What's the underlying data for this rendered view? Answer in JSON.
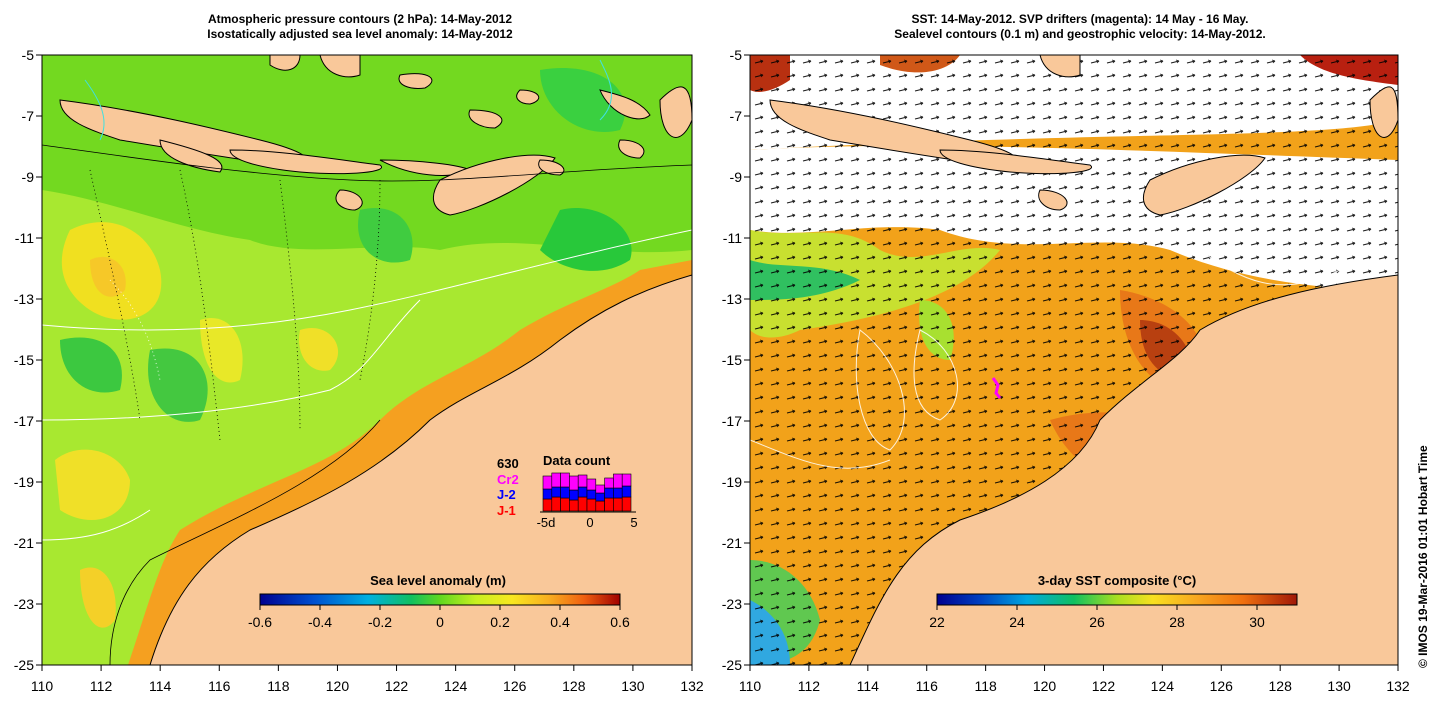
{
  "left_panel": {
    "title_line1": "Atmospheric pressure contours (2 hPa): 14-May-2012",
    "title_line2": "Isostatically adjusted sea level anomaly: 14-May-2012",
    "x_ticks": [
      "110",
      "112",
      "114",
      "116",
      "118",
      "120",
      "122",
      "124",
      "126",
      "128",
      "130",
      "132"
    ],
    "y_ticks": [
      "-5",
      "-7",
      "-9",
      "-11",
      "-13",
      "-15",
      "-17",
      "-19",
      "-21",
      "-23",
      "-25"
    ],
    "colorbar": {
      "title": "Sea level anomaly (m)",
      "ticks": [
        "-0.6",
        "-0.4",
        "-0.2",
        "0",
        "0.2",
        "0.4",
        "0.6"
      ],
      "range": [
        -0.6,
        0.6
      ]
    },
    "data_count": {
      "title": "Data count",
      "total": "630",
      "legend": [
        {
          "label": "Cr2",
          "color": "#ff00ff"
        },
        {
          "label": "J-2",
          "color": "#0000ff"
        },
        {
          "label": "J-1",
          "color": "#ff0000"
        }
      ],
      "x_labels": [
        "-5d",
        "0",
        "5"
      ],
      "bars": [
        {
          "day": -5,
          "j1": 12,
          "j2": 10,
          "cr2": 13
        },
        {
          "day": -4,
          "j1": 14,
          "j2": 10,
          "cr2": 14
        },
        {
          "day": -3,
          "j1": 13,
          "j2": 11,
          "cr2": 14
        },
        {
          "day": -2,
          "j1": 11,
          "j2": 10,
          "cr2": 14
        },
        {
          "day": -1,
          "j1": 14,
          "j2": 10,
          "cr2": 12
        },
        {
          "day": 0,
          "j1": 12,
          "j2": 9,
          "cr2": 11
        },
        {
          "day": 1,
          "j1": 10,
          "j2": 8,
          "cr2": 8
        },
        {
          "day": 2,
          "j1": 13,
          "j2": 10,
          "cr2": 10
        },
        {
          "day": 3,
          "j1": 13,
          "j2": 10,
          "cr2": 14
        },
        {
          "day": 4,
          "j1": 14,
          "j2": 11,
          "cr2": 12
        }
      ]
    }
  },
  "right_panel": {
    "title_line1": "SST: 14-May-2012. SVP drifters (magenta): 14 May - 16 May.",
    "title_line2": "Sealevel contours (0.1 m) and geostrophic velocity: 14-May-2012.",
    "x_ticks": [
      "110",
      "112",
      "114",
      "116",
      "118",
      "120",
      "122",
      "124",
      "126",
      "128",
      "130",
      "132"
    ],
    "y_ticks": [
      "-5",
      "-7",
      "-9",
      "-11",
      "-13",
      "-15",
      "-17",
      "-19",
      "-21",
      "-23",
      "-25"
    ],
    "colorbar": {
      "title": "3-day SST composite (°C)",
      "ticks": [
        "22",
        "24",
        "26",
        "28",
        "30"
      ],
      "range": [
        22,
        31
      ]
    }
  },
  "credit": "© IMOS 19-Mar-2016 01:01 Hobart Time",
  "colors": {
    "land": "#f9c89a",
    "ocean_left": "#8ee02c",
    "ocean_right": "#f1a419",
    "cloud": "#ffffff"
  }
}
